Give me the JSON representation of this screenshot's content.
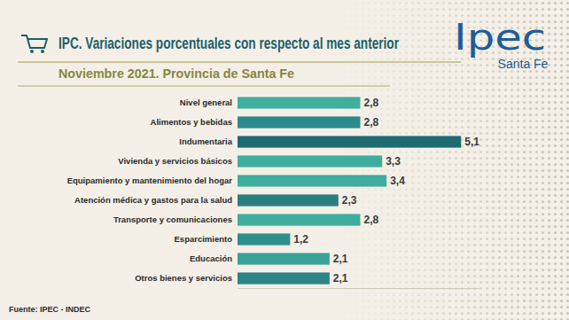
{
  "chart_data": {
    "type": "bar",
    "orientation": "horizontal",
    "title": "IPC. Variaciones porcentuales con respecto al mes anterior",
    "subtitle": "Noviembre 2021. Provincia de Santa Fe",
    "source": "Fuente: IPEC - INDEC",
    "annotations": [
      "Ipec",
      "Santa Fe"
    ],
    "categories": [
      "Nivel general",
      "Alimentos y bebidas",
      "Indumentaria",
      "Vivienda y servicios básicos",
      "Equipamiento y mantenimiento del hogar",
      "Atención médica y gastos para la salud",
      "Transporte y comunicaciones",
      "Esparcimiento",
      "Educación",
      "Otros bienes y servicios"
    ],
    "values": [
      2.8,
      2.8,
      5.1,
      3.3,
      3.4,
      2.3,
      2.8,
      1.2,
      2.1,
      2.1
    ],
    "value_labels": [
      "2,8",
      "2,8",
      "5,1",
      "3,3",
      "3,4",
      "2,3",
      "2,8",
      "1,2",
      "2,1",
      "2,1"
    ],
    "colors": [
      "#3fae9e",
      "#2c8a8a",
      "#1f6b72",
      "#3fae9e",
      "#3fae9e",
      "#2b7d80",
      "#3fae9e",
      "#2e8f8a",
      "#38a395",
      "#2c8486"
    ],
    "xlim": [
      0,
      5.5
    ],
    "data_labels": true,
    "tick_labels": "y",
    "grid": false
  }
}
